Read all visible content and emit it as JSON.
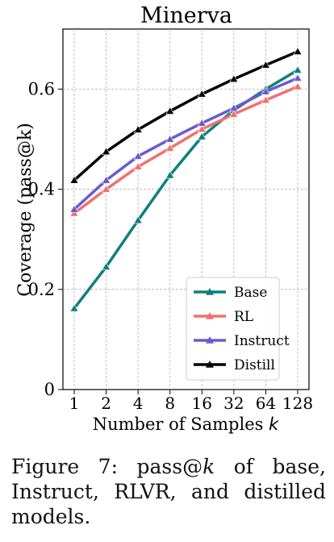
{
  "chart_data": {
    "type": "line",
    "title": "Minerva",
    "xlabel": "Number of Samples k",
    "ylabel": "Coverage (pass@k)",
    "x": [
      1,
      2,
      4,
      8,
      16,
      32,
      64,
      128
    ],
    "x_tick_labels": [
      "1",
      "2",
      "4",
      "8",
      "16",
      "32",
      "64",
      "128"
    ],
    "x_scale": "log2",
    "y_ticks": [
      0,
      0.2,
      0.4,
      0.6
    ],
    "y_tick_labels": [
      "0",
      "0.2",
      "0.4",
      "0.6"
    ],
    "ylim": [
      0,
      0.72
    ],
    "grid": true,
    "legend_position": "bottom-right",
    "marker": "triangle",
    "series": [
      {
        "name": "Base",
        "color": "#0f7f7c",
        "values": [
          0.162,
          0.245,
          0.338,
          0.428,
          0.505,
          0.558,
          0.6,
          0.638
        ]
      },
      {
        "name": "RL",
        "color": "#f0706e",
        "values": [
          0.352,
          0.4,
          0.445,
          0.482,
          0.52,
          0.55,
          0.578,
          0.605
        ]
      },
      {
        "name": "Instruct",
        "color": "#6a5acd",
        "values": [
          0.36,
          0.418,
          0.466,
          0.5,
          0.532,
          0.562,
          0.595,
          0.622
        ]
      },
      {
        "name": "Distill",
        "color": "#000000",
        "values": [
          0.418,
          0.475,
          0.519,
          0.556,
          0.59,
          0.62,
          0.648,
          0.675
        ]
      }
    ]
  },
  "caption": {
    "label": "Figure 7: pass@",
    "k": "k",
    "rest": " of base, Instruct, RLVR, and distilled models."
  }
}
